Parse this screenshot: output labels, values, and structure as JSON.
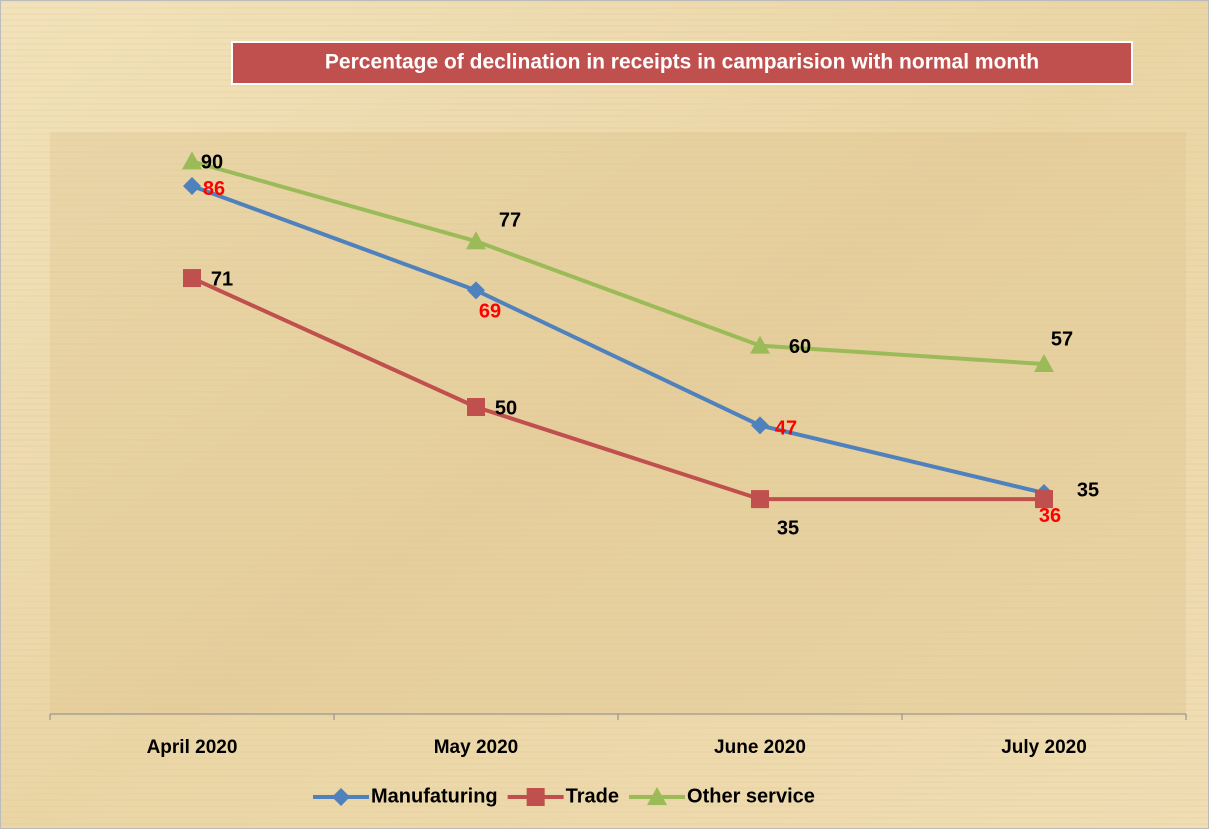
{
  "chart_data": {
    "type": "line",
    "title": "Percentage of declination in receipts in camparision with  normal month",
    "categories": [
      "April 2020",
      "May 2020",
      "June 2020",
      "July 2020"
    ],
    "series": [
      {
        "name": "Manufaturing",
        "color": "#4f81bd",
        "marker": "diamond",
        "label_color": "#ff0000",
        "values": [
          86,
          69,
          47,
          36
        ]
      },
      {
        "name": "Trade",
        "color": "#c0504d",
        "marker": "square",
        "label_color": "#000000",
        "values": [
          71,
          50,
          35,
          35
        ]
      },
      {
        "name": "Other service",
        "color": "#9bbb59",
        "marker": "triangle",
        "label_color": "#000000",
        "values": [
          90,
          77,
          60,
          57
        ]
      }
    ],
    "ylim": [
      0,
      100
    ],
    "legend": "bottom"
  }
}
